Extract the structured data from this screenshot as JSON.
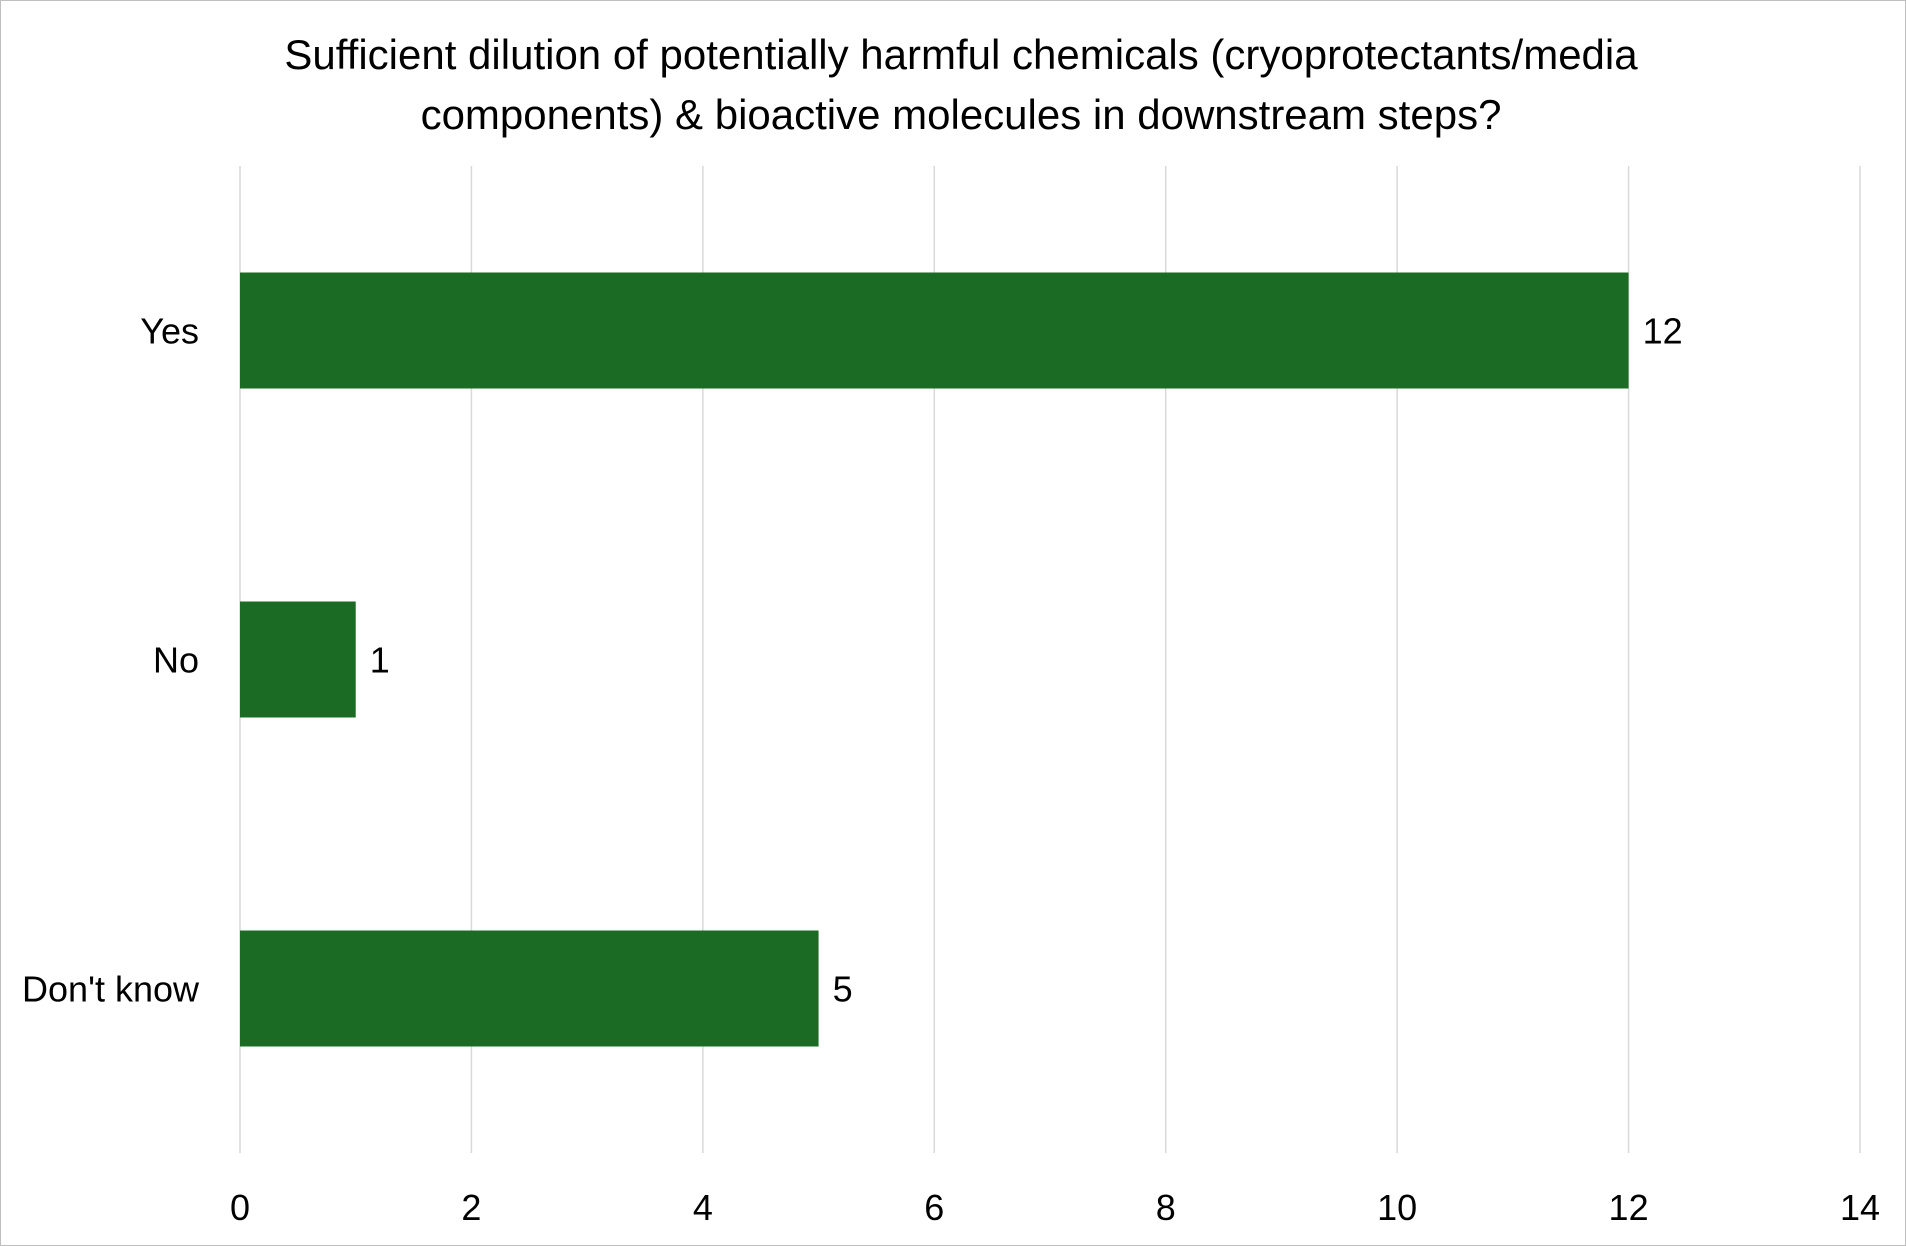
{
  "chart_data": {
    "type": "bar",
    "orientation": "horizontal",
    "title_lines": [
      "Sufficient dilution of potentially harmful chemicals (cryoprotectants/media",
      "components) & bioactive molecules in downstream steps?"
    ],
    "categories": [
      "Yes",
      "No",
      "Don't know"
    ],
    "values": [
      12,
      1,
      5
    ],
    "data_labels": [
      "12",
      "1",
      "5"
    ],
    "xlim": [
      0,
      14
    ],
    "x_ticks": [
      0,
      2,
      4,
      6,
      8,
      10,
      12,
      14
    ],
    "x_tick_labels": [
      "0",
      "2",
      "4",
      "6",
      "8",
      "10",
      "12",
      "14"
    ],
    "grid": "vertical",
    "legend": "none",
    "bar_color": "#1c6b25",
    "gridline_color": "#d9d9d9"
  }
}
